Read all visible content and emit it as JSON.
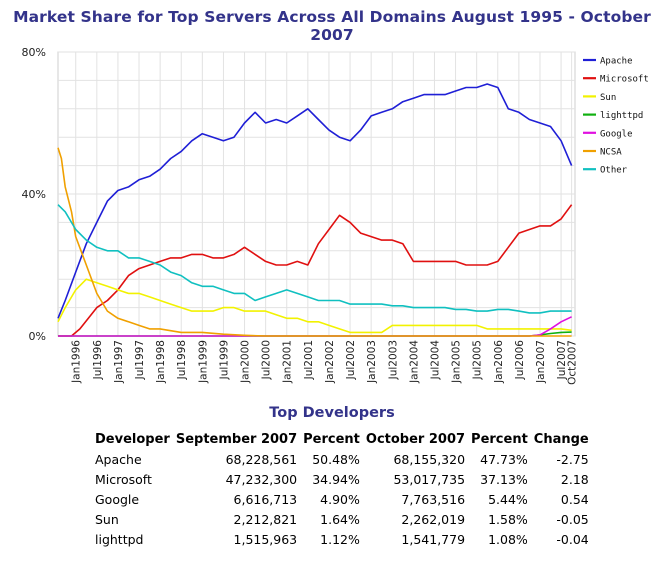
{
  "title": "Market Share for Top Servers Across All Domains August 1995 - October 2007",
  "chart_data": {
    "type": "line",
    "ylim": [
      0,
      80
    ],
    "yticks": [
      "0%",
      "40%",
      "80%"
    ],
    "yticks_values": [
      0,
      40,
      80
    ],
    "grid": true,
    "legend_placement": "right",
    "x_tick_labels": [
      "Jan1996",
      "Jul1996",
      "Jan1997",
      "Jul1997",
      "Jan1998",
      "Jul1998",
      "Jan1999",
      "Jul1999",
      "Jan2000",
      "Jul2000",
      "Jan2001",
      "Jul2001",
      "Jan2002",
      "Jul2002",
      "Jan2003",
      "Jul2003",
      "Jan2004",
      "Jul2004",
      "Jan2005",
      "Jul2005",
      "Jan2006",
      "Jul2006",
      "Jan2007",
      "Jul2007",
      "Oct2007"
    ],
    "x_tick_values": [
      1996.0,
      1996.5,
      1997.0,
      1997.5,
      1998.0,
      1998.5,
      1999.0,
      1999.5,
      2000.0,
      2000.5,
      2001.0,
      2001.5,
      2002.0,
      2002.5,
      2003.0,
      2003.5,
      2004.0,
      2004.5,
      2005.0,
      2005.5,
      2006.0,
      2006.5,
      2007.0,
      2007.5,
      2007.75
    ],
    "xlim": [
      1995.58,
      2007.83
    ],
    "series": [
      {
        "name": "Apache",
        "color": "#1f1fd6",
        "points": [
          [
            1995.58,
            5
          ],
          [
            1995.75,
            10
          ],
          [
            1996.0,
            18
          ],
          [
            1996.25,
            26
          ],
          [
            1996.5,
            32
          ],
          [
            1996.75,
            38
          ],
          [
            1997.0,
            41
          ],
          [
            1997.25,
            42
          ],
          [
            1997.5,
            44
          ],
          [
            1997.75,
            45
          ],
          [
            1998.0,
            47
          ],
          [
            1998.25,
            50
          ],
          [
            1998.5,
            52
          ],
          [
            1998.75,
            55
          ],
          [
            1999.0,
            57
          ],
          [
            1999.25,
            56
          ],
          [
            1999.5,
            55
          ],
          [
            1999.75,
            56
          ],
          [
            2000.0,
            60
          ],
          [
            2000.25,
            63
          ],
          [
            2000.5,
            60
          ],
          [
            2000.75,
            61
          ],
          [
            2001.0,
            60
          ],
          [
            2001.25,
            62
          ],
          [
            2001.5,
            64
          ],
          [
            2001.75,
            61
          ],
          [
            2002.0,
            58
          ],
          [
            2002.25,
            56
          ],
          [
            2002.5,
            55
          ],
          [
            2002.75,
            58
          ],
          [
            2003.0,
            62
          ],
          [
            2003.25,
            63
          ],
          [
            2003.5,
            64
          ],
          [
            2003.75,
            66
          ],
          [
            2004.0,
            67
          ],
          [
            2004.25,
            68
          ],
          [
            2004.5,
            68
          ],
          [
            2004.75,
            68
          ],
          [
            2005.0,
            69
          ],
          [
            2005.25,
            70
          ],
          [
            2005.5,
            70
          ],
          [
            2005.75,
            71
          ],
          [
            2006.0,
            70
          ],
          [
            2006.25,
            64
          ],
          [
            2006.5,
            63
          ],
          [
            2006.75,
            61
          ],
          [
            2007.0,
            60
          ],
          [
            2007.25,
            59
          ],
          [
            2007.5,
            55
          ],
          [
            2007.75,
            48
          ]
        ]
      },
      {
        "name": "Microsoft",
        "color": "#e01010",
        "points": [
          [
            1995.58,
            0
          ],
          [
            1995.9,
            0
          ],
          [
            1996.1,
            2
          ],
          [
            1996.5,
            8
          ],
          [
            1996.75,
            10
          ],
          [
            1997.0,
            13
          ],
          [
            1997.25,
            17
          ],
          [
            1997.5,
            19
          ],
          [
            1997.75,
            20
          ],
          [
            1998.0,
            21
          ],
          [
            1998.25,
            22
          ],
          [
            1998.5,
            22
          ],
          [
            1998.75,
            23
          ],
          [
            1999.0,
            23
          ],
          [
            1999.25,
            22
          ],
          [
            1999.5,
            22
          ],
          [
            1999.75,
            23
          ],
          [
            2000.0,
            25
          ],
          [
            2000.25,
            23
          ],
          [
            2000.5,
            21
          ],
          [
            2000.75,
            20
          ],
          [
            2001.0,
            20
          ],
          [
            2001.25,
            21
          ],
          [
            2001.5,
            20
          ],
          [
            2001.75,
            26
          ],
          [
            2002.0,
            30
          ],
          [
            2002.25,
            34
          ],
          [
            2002.5,
            32
          ],
          [
            2002.75,
            29
          ],
          [
            2003.0,
            28
          ],
          [
            2003.25,
            27
          ],
          [
            2003.5,
            27
          ],
          [
            2003.75,
            26
          ],
          [
            2004.0,
            21
          ],
          [
            2004.25,
            21
          ],
          [
            2004.5,
            21
          ],
          [
            2004.75,
            21
          ],
          [
            2005.0,
            21
          ],
          [
            2005.25,
            20
          ],
          [
            2005.5,
            20
          ],
          [
            2005.75,
            20
          ],
          [
            2006.0,
            21
          ],
          [
            2006.25,
            25
          ],
          [
            2006.5,
            29
          ],
          [
            2006.75,
            30
          ],
          [
            2007.0,
            31
          ],
          [
            2007.25,
            31
          ],
          [
            2007.5,
            33
          ],
          [
            2007.75,
            37
          ]
        ]
      },
      {
        "name": "Sun",
        "color": "#f2f200",
        "points": [
          [
            1995.58,
            4
          ],
          [
            1995.75,
            8
          ],
          [
            1996.0,
            13
          ],
          [
            1996.25,
            16
          ],
          [
            1996.5,
            15
          ],
          [
            1996.75,
            14
          ],
          [
            1997.0,
            13
          ],
          [
            1997.25,
            12
          ],
          [
            1997.5,
            12
          ],
          [
            1997.75,
            11
          ],
          [
            1998.0,
            10
          ],
          [
            1998.25,
            9
          ],
          [
            1998.5,
            8
          ],
          [
            1998.75,
            7
          ],
          [
            1999.0,
            7
          ],
          [
            1999.25,
            7
          ],
          [
            1999.5,
            8
          ],
          [
            1999.75,
            8
          ],
          [
            2000.0,
            7
          ],
          [
            2000.25,
            7
          ],
          [
            2000.5,
            7
          ],
          [
            2000.75,
            6
          ],
          [
            2001.0,
            5
          ],
          [
            2001.25,
            5
          ],
          [
            2001.5,
            4
          ],
          [
            2001.75,
            4
          ],
          [
            2002.0,
            3
          ],
          [
            2002.25,
            2
          ],
          [
            2002.5,
            1
          ],
          [
            2002.75,
            1
          ],
          [
            2003.0,
            1
          ],
          [
            2003.25,
            1
          ],
          [
            2003.5,
            3
          ],
          [
            2003.75,
            3
          ],
          [
            2004.0,
            3
          ],
          [
            2004.25,
            3
          ],
          [
            2004.5,
            3
          ],
          [
            2004.75,
            3
          ],
          [
            2005.0,
            3
          ],
          [
            2005.25,
            3
          ],
          [
            2005.5,
            3
          ],
          [
            2005.75,
            2
          ],
          [
            2006.0,
            2
          ],
          [
            2006.25,
            2
          ],
          [
            2006.5,
            2
          ],
          [
            2006.75,
            2
          ],
          [
            2007.0,
            2
          ],
          [
            2007.25,
            2
          ],
          [
            2007.5,
            2
          ],
          [
            2007.75,
            1.6
          ]
        ]
      },
      {
        "name": "lighttpd",
        "color": "#10b010",
        "points": [
          [
            1995.58,
            0
          ],
          [
            2006.5,
            0
          ],
          [
            2006.75,
            0
          ],
          [
            2007.0,
            0.3
          ],
          [
            2007.25,
            0.7
          ],
          [
            2007.5,
            1.0
          ],
          [
            2007.75,
            1.1
          ]
        ]
      },
      {
        "name": "Google",
        "color": "#e010e0",
        "points": [
          [
            1995.58,
            0
          ],
          [
            2006.75,
            0
          ],
          [
            2007.0,
            0.3
          ],
          [
            2007.25,
            2
          ],
          [
            2007.5,
            4
          ],
          [
            2007.75,
            5.4
          ]
        ]
      },
      {
        "name": "NCSA",
        "color": "#f0a000",
        "points": [
          [
            1995.58,
            53
          ],
          [
            1995.66,
            50
          ],
          [
            1995.75,
            42
          ],
          [
            1995.9,
            35
          ],
          [
            1996.0,
            28
          ],
          [
            1996.25,
            20
          ],
          [
            1996.5,
            12
          ],
          [
            1996.75,
            7
          ],
          [
            1997.0,
            5
          ],
          [
            1997.25,
            4
          ],
          [
            1997.5,
            3
          ],
          [
            1997.75,
            2
          ],
          [
            1998.0,
            2
          ],
          [
            1998.5,
            1
          ],
          [
            1999.0,
            1
          ],
          [
            1999.5,
            0.5
          ],
          [
            2000.0,
            0.2
          ],
          [
            2000.5,
            0
          ],
          [
            2007.75,
            0
          ]
        ]
      },
      {
        "name": "Other",
        "color": "#10c0c0",
        "points": [
          [
            1995.58,
            37
          ],
          [
            1995.75,
            35
          ],
          [
            1996.0,
            30
          ],
          [
            1996.25,
            27
          ],
          [
            1996.5,
            25
          ],
          [
            1996.75,
            24
          ],
          [
            1997.0,
            24
          ],
          [
            1997.25,
            22
          ],
          [
            1997.5,
            22
          ],
          [
            1997.75,
            21
          ],
          [
            1998.0,
            20
          ],
          [
            1998.25,
            18
          ],
          [
            1998.5,
            17
          ],
          [
            1998.75,
            15
          ],
          [
            1999.0,
            14
          ],
          [
            1999.25,
            14
          ],
          [
            1999.5,
            13
          ],
          [
            1999.75,
            12
          ],
          [
            2000.0,
            12
          ],
          [
            2000.25,
            10
          ],
          [
            2000.5,
            11
          ],
          [
            2000.75,
            12
          ],
          [
            2001.0,
            13
          ],
          [
            2001.25,
            12
          ],
          [
            2001.5,
            11
          ],
          [
            2001.75,
            10
          ],
          [
            2002.0,
            10
          ],
          [
            2002.25,
            10
          ],
          [
            2002.5,
            9
          ],
          [
            2002.75,
            9
          ],
          [
            2003.0,
            9
          ],
          [
            2003.25,
            9
          ],
          [
            2003.5,
            8.5
          ],
          [
            2003.75,
            8.5
          ],
          [
            2004.0,
            8
          ],
          [
            2004.25,
            8
          ],
          [
            2004.5,
            8
          ],
          [
            2004.75,
            8
          ],
          [
            2005.0,
            7.5
          ],
          [
            2005.25,
            7.5
          ],
          [
            2005.5,
            7
          ],
          [
            2005.75,
            7
          ],
          [
            2006.0,
            7.5
          ],
          [
            2006.25,
            7.5
          ],
          [
            2006.5,
            7
          ],
          [
            2006.75,
            6.5
          ],
          [
            2007.0,
            6.5
          ],
          [
            2007.25,
            7
          ],
          [
            2007.5,
            7
          ],
          [
            2007.75,
            7
          ]
        ]
      }
    ]
  },
  "table": {
    "title": "Top Developers",
    "headers": [
      "Developer",
      "September 2007",
      "Percent",
      "October 2007",
      "Percent",
      "Change"
    ],
    "rows": [
      [
        "Apache",
        "68,228,561",
        "50.48%",
        "68,155,320",
        "47.73%",
        "-2.75"
      ],
      [
        "Microsoft",
        "47,232,300",
        "34.94%",
        "53,017,735",
        "37.13%",
        "2.18"
      ],
      [
        "Google",
        "6,616,713",
        "4.90%",
        "7,763,516",
        "5.44%",
        "0.54"
      ],
      [
        "Sun",
        "2,212,821",
        "1.64%",
        "2,262,019",
        "1.58%",
        "-0.05"
      ],
      [
        "lighttpd",
        "1,515,963",
        "1.12%",
        "1,541,779",
        "1.08%",
        "-0.04"
      ]
    ]
  }
}
